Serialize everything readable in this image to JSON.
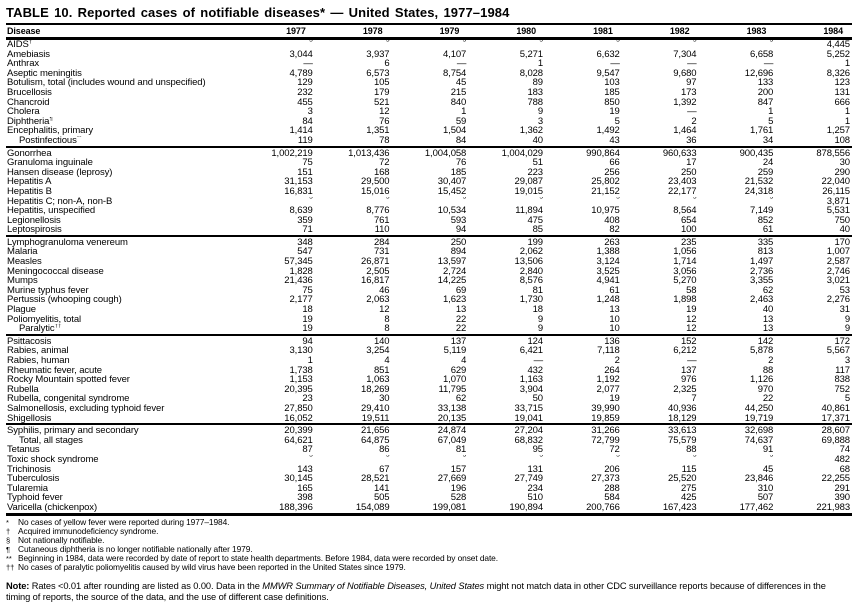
{
  "title": "TABLE 10. Reported cases of notifiable diseases* — United States, 1977–1984",
  "table": {
    "disease_header": "Disease",
    "year_headers": [
      "1977",
      "1978",
      "1979",
      "1980",
      "1981",
      "1982",
      "1983",
      "1984"
    ],
    "not_notifiable_symbol": "§",
    "groups": [
      {
        "rows": [
          {
            "disease": "AIDS",
            "marker": "†",
            "values": [
              "§",
              "§",
              "§",
              "§",
              "§",
              "§",
              "§",
              "4,445"
            ]
          },
          {
            "disease": "Amebiasis",
            "values": [
              "3,044",
              "3,937",
              "4,107",
              "5,271",
              "6,632",
              "7,304",
              "6,658",
              "5,252"
            ]
          },
          {
            "disease": "Anthrax",
            "values": [
              "—",
              "6",
              "—",
              "1",
              "—",
              "—",
              "—",
              "1"
            ]
          },
          {
            "disease": "Aseptic meningitis",
            "values": [
              "4,789",
              "6,573",
              "8,754",
              "8,028",
              "9,547",
              "9,680",
              "12,696",
              "8,326"
            ]
          },
          {
            "disease": "Botulism, total (includes wound and unspecified)",
            "values": [
              "129",
              "105",
              "45",
              "89",
              "103",
              "97",
              "133",
              "123"
            ]
          },
          {
            "disease": "Brucellosis",
            "values": [
              "232",
              "179",
              "215",
              "183",
              "185",
              "173",
              "200",
              "131"
            ]
          },
          {
            "disease": "Chancroid",
            "values": [
              "455",
              "521",
              "840",
              "788",
              "850",
              "1,392",
              "847",
              "666"
            ]
          },
          {
            "disease": "Cholera",
            "values": [
              "3",
              "12",
              "1",
              "9",
              "19",
              "—",
              "1",
              "1"
            ]
          },
          {
            "disease": "Diphtheria",
            "marker": "¶",
            "values": [
              "84",
              "76",
              "59",
              "3",
              "5",
              "2",
              "5",
              "1"
            ]
          },
          {
            "disease": "Encephalitis, primary",
            "values": [
              "1,414",
              "1,351",
              "1,504",
              "1,362",
              "1,492",
              "1,464",
              "1,761",
              "1,257"
            ]
          },
          {
            "disease": "Postinfectious",
            "marker": "**",
            "indent": true,
            "values": [
              "119",
              "78",
              "84",
              "40",
              "43",
              "36",
              "34",
              "108"
            ]
          }
        ]
      },
      {
        "rows": [
          {
            "disease": "Gonorrhea",
            "values": [
              "1,002,219",
              "1,013,436",
              "1,004,058",
              "1,004,029",
              "990,864",
              "960,633",
              "900,435",
              "878,556"
            ]
          },
          {
            "disease": "Granuloma inguinale",
            "values": [
              "75",
              "72",
              "76",
              "51",
              "66",
              "17",
              "24",
              "30"
            ]
          },
          {
            "disease": "Hansen disease (leprosy)",
            "values": [
              "151",
              "168",
              "185",
              "223",
              "256",
              "250",
              "259",
              "290"
            ]
          },
          {
            "disease": "Hepatitis A",
            "values": [
              "31,153",
              "29,500",
              "30,407",
              "29,087",
              "25,802",
              "23,403",
              "21,532",
              "22,040"
            ]
          },
          {
            "disease": "Hepatitis B",
            "values": [
              "16,831",
              "15,016",
              "15,452",
              "19,015",
              "21,152",
              "22,177",
              "24,318",
              "26,115"
            ]
          },
          {
            "disease": "Hepatitis C; non-A, non-B",
            "values": [
              "§",
              "§",
              "§",
              "§",
              "§",
              "§",
              "§",
              "3,871"
            ]
          },
          {
            "disease": "Hepatitis, unspecified",
            "values": [
              "8,639",
              "8,776",
              "10,534",
              "11,894",
              "10,975",
              "8,564",
              "7,149",
              "5,531"
            ]
          },
          {
            "disease": "Legionellosis",
            "values": [
              "359",
              "761",
              "593",
              "475",
              "408",
              "654",
              "852",
              "750"
            ]
          },
          {
            "disease": "Leptospirosis",
            "values": [
              "71",
              "110",
              "94",
              "85",
              "82",
              "100",
              "61",
              "40"
            ]
          }
        ]
      },
      {
        "rows": [
          {
            "disease": "Lymphogranuloma venereum",
            "values": [
              "348",
              "284",
              "250",
              "199",
              "263",
              "235",
              "335",
              "170"
            ]
          },
          {
            "disease": "Malaria",
            "values": [
              "547",
              "731",
              "894",
              "2,062",
              "1,388",
              "1,056",
              "813",
              "1,007"
            ]
          },
          {
            "disease": "Measles",
            "values": [
              "57,345",
              "26,871",
              "13,597",
              "13,506",
              "3,124",
              "1,714",
              "1,497",
              "2,587"
            ]
          },
          {
            "disease": "Meningococcal disease",
            "values": [
              "1,828",
              "2,505",
              "2,724",
              "2,840",
              "3,525",
              "3,056",
              "2,736",
              "2,746"
            ]
          },
          {
            "disease": "Mumps",
            "values": [
              "21,436",
              "16,817",
              "14,225",
              "8,576",
              "4,941",
              "5,270",
              "3,355",
              "3,021"
            ]
          },
          {
            "disease": "Murine typhus fever",
            "values": [
              "75",
              "46",
              "69",
              "81",
              "61",
              "58",
              "62",
              "53"
            ]
          },
          {
            "disease": "Pertussis (whooping cough)",
            "values": [
              "2,177",
              "2,063",
              "1,623",
              "1,730",
              "1,248",
              "1,898",
              "2,463",
              "2,276"
            ]
          },
          {
            "disease": "Plague",
            "values": [
              "18",
              "12",
              "13",
              "18",
              "13",
              "19",
              "40",
              "31"
            ]
          },
          {
            "disease": "Poliomyelitis, total",
            "values": [
              "19",
              "8",
              "22",
              "9",
              "10",
              "12",
              "13",
              "9"
            ]
          },
          {
            "disease": "Paralytic",
            "marker": "††",
            "indent": true,
            "values": [
              "19",
              "8",
              "22",
              "9",
              "10",
              "12",
              "13",
              "9"
            ]
          }
        ]
      },
      {
        "rows": [
          {
            "disease": "Psittacosis",
            "values": [
              "94",
              "140",
              "137",
              "124",
              "136",
              "152",
              "142",
              "172"
            ]
          },
          {
            "disease": "Rabies, animal",
            "values": [
              "3,130",
              "3,254",
              "5,119",
              "6,421",
              "7,118",
              "6,212",
              "5,878",
              "5,567"
            ]
          },
          {
            "disease": "Rabies, human",
            "values": [
              "1",
              "4",
              "4",
              "—",
              "2",
              "—",
              "2",
              "3"
            ]
          },
          {
            "disease": "Rheumatic fever, acute",
            "values": [
              "1,738",
              "851",
              "629",
              "432",
              "264",
              "137",
              "88",
              "117"
            ]
          },
          {
            "disease": "Rocky Mountain spotted fever",
            "values": [
              "1,153",
              "1,063",
              "1,070",
              "1,163",
              "1,192",
              "976",
              "1,126",
              "838"
            ]
          },
          {
            "disease": "Rubella",
            "values": [
              "20,395",
              "18,269",
              "11,795",
              "3,904",
              "2,077",
              "2,325",
              "970",
              "752"
            ]
          },
          {
            "disease": "Rubella, congenital syndrome",
            "values": [
              "23",
              "30",
              "62",
              "50",
              "19",
              "7",
              "22",
              "5"
            ]
          },
          {
            "disease": "Salmonellosis, excluding typhoid fever",
            "values": [
              "27,850",
              "29,410",
              "33,138",
              "33,715",
              "39,990",
              "40,936",
              "44,250",
              "40,861"
            ]
          },
          {
            "disease": "Shigellosis",
            "values": [
              "16,052",
              "19,511",
              "20,135",
              "19,041",
              "19,859",
              "18,129",
              "19,719",
              "17,371"
            ]
          }
        ]
      },
      {
        "rows": [
          {
            "disease": "Syphilis, primary and secondary",
            "values": [
              "20,399",
              "21,656",
              "24,874",
              "27,204",
              "31,266",
              "33,613",
              "32,698",
              "28,607"
            ]
          },
          {
            "disease": "Total, all stages",
            "indent": true,
            "values": [
              "64,621",
              "64,875",
              "67,049",
              "68,832",
              "72,799",
              "75,579",
              "74,637",
              "69,888"
            ]
          },
          {
            "disease": "Tetanus",
            "values": [
              "87",
              "86",
              "81",
              "95",
              "72",
              "88",
              "91",
              "74"
            ]
          },
          {
            "disease": "Toxic shock syndrome",
            "values": [
              "§",
              "§",
              "§",
              "§",
              "§",
              "§",
              "§",
              "482"
            ]
          },
          {
            "disease": "Trichinosis",
            "values": [
              "143",
              "67",
              "157",
              "131",
              "206",
              "115",
              "45",
              "68"
            ]
          },
          {
            "disease": "Tuberculosis",
            "values": [
              "30,145",
              "28,521",
              "27,669",
              "27,749",
              "27,373",
              "25,520",
              "23,846",
              "22,255"
            ]
          },
          {
            "disease": "Tularemia",
            "values": [
              "165",
              "141",
              "196",
              "234",
              "288",
              "275",
              "310",
              "291"
            ]
          },
          {
            "disease": "Typhoid fever",
            "values": [
              "398",
              "505",
              "528",
              "510",
              "584",
              "425",
              "507",
              "390"
            ]
          },
          {
            "disease": "Varicella (chickenpox)",
            "values": [
              "188,396",
              "154,089",
              "199,081",
              "190,894",
              "200,766",
              "167,423",
              "177,462",
              "221,983"
            ]
          }
        ]
      }
    ]
  },
  "footnotes": [
    {
      "marker": "*",
      "text": "No cases of yellow fever were reported during 1977–1984."
    },
    {
      "marker": "†",
      "text": "Acquired immunodeficiency syndrome."
    },
    {
      "marker": "§",
      "text": "Not nationally notifiable."
    },
    {
      "marker": "¶",
      "text": "Cutaneous diphtheria is no longer notifiable nationally after 1979."
    },
    {
      "marker": "**",
      "text": "Beginning in 1984, data were recorded by date of report to state health departments.  Before 1984, data were recorded by onset date."
    },
    {
      "marker": "††",
      "text": "No cases of paralytic poliomyelitis caused by wild virus have been reported in the United States since 1979."
    }
  ],
  "note": {
    "label": "Note:",
    "text_before": " Rates <0.01 after rounding are listed as 0.00. Data in the ",
    "italic": "MMWR Summary of Notifiable Diseases, United States",
    "text_after": " might not match data in other CDC surveillance reports because of differences in the timing of reports, the source of the data, and the use of different case definitions."
  }
}
